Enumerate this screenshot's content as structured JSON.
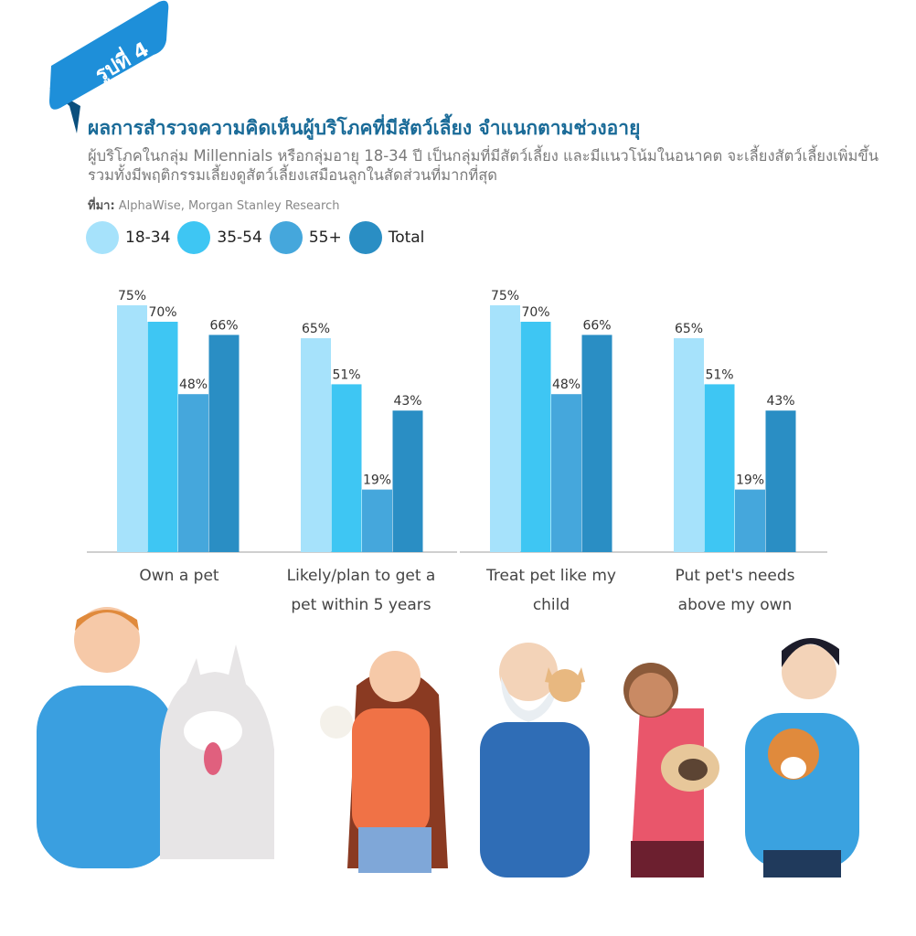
{
  "badge": {
    "label": "รูปที่ 4"
  },
  "header": {
    "title": "ผลการสำรวจความคิดเห็นผู้บริโภคที่มีสัตว์เลี้ยง จำแนกตามช่วงอายุ",
    "subtitle": "ผู้บริโภคในกลุ่ม Millennials หรือกลุ่มอายุ 18-34 ปี เป็นกลุ่มที่มีสัตว์เลี้ยง และมีแนวโน้มในอนาคต จะเลี้ยงสัตว์เลี้ยงเพิ่มขึ้น รวมทั้งมีพฤติกรรมเลี้ยงดูสัตว์เลี้ยงเสมือนลูกในสัดส่วนที่มากที่สุด",
    "source_label": "ที่มา:",
    "source": "AlphaWise, Morgan Stanley Research"
  },
  "colors": {
    "accent": "#1a6b98",
    "s1": "#a6e2fb",
    "s2": "#3ec6f3",
    "s3": "#45a7dc",
    "s4": "#2a8ec4"
  },
  "chart_data": {
    "type": "bar",
    "categories": [
      "Own a pet",
      "Likely/plan to get a pet within 5 years",
      "Treat pet like my child",
      "Put pet's needs above my own"
    ],
    "category_lines": [
      [
        "Own a pet"
      ],
      [
        "Likely/plan to get a",
        "pet within 5 years"
      ],
      [
        "Treat pet like my",
        "child"
      ],
      [
        "Put pet's needs",
        "above my own"
      ]
    ],
    "series": [
      {
        "name": "18-34",
        "color": "#a6e2fb",
        "values": [
          75,
          65,
          75,
          65
        ]
      },
      {
        "name": "35-54",
        "color": "#3ec6f3",
        "values": [
          70,
          51,
          70,
          51
        ]
      },
      {
        "name": "55+",
        "color": "#45a7dc",
        "values": [
          48,
          19,
          48,
          19
        ]
      },
      {
        "name": "Total",
        "color": "#2a8ec4",
        "values": [
          66,
          43,
          66,
          43
        ]
      }
    ],
    "value_suffix": "%",
    "ylim": [
      0,
      100
    ],
    "grid": false,
    "legend": "top-left"
  }
}
